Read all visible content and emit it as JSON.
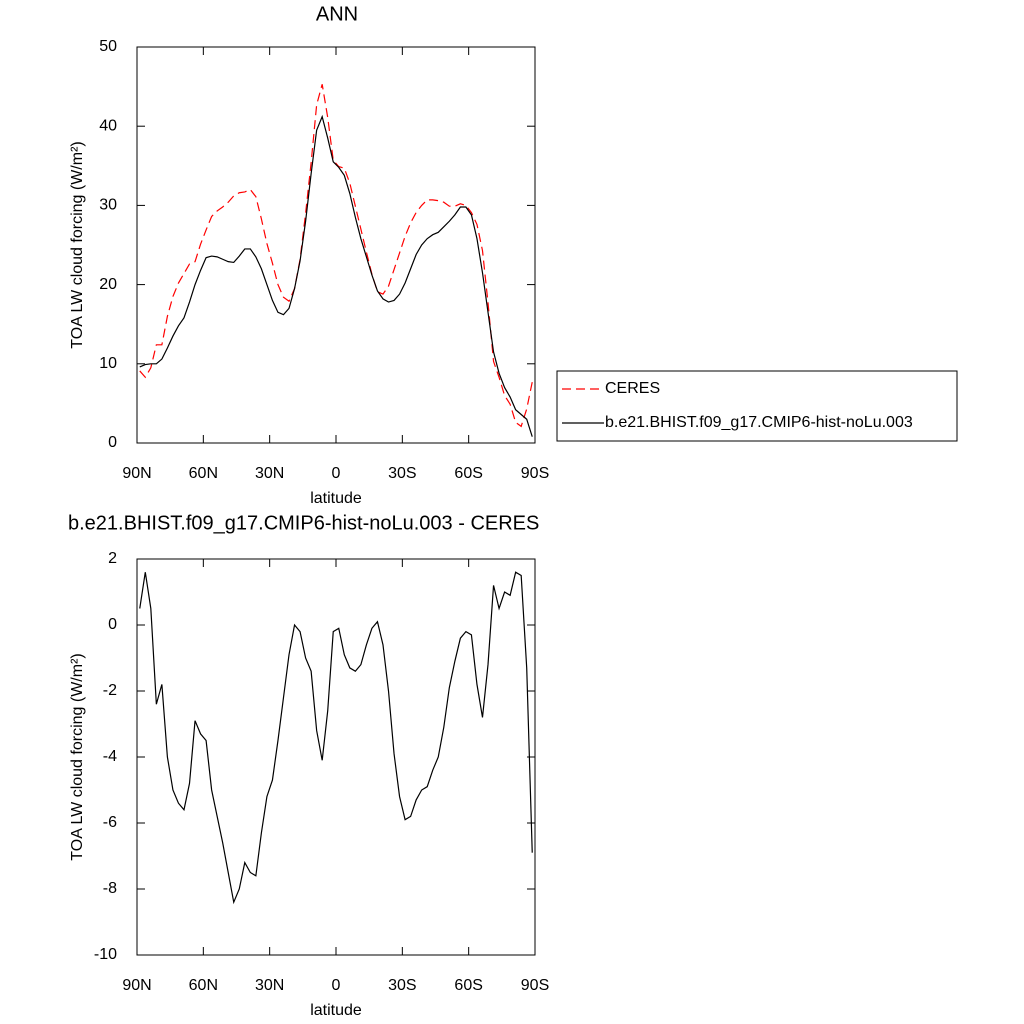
{
  "chart_data": [
    {
      "type": "line",
      "title": "ANN",
      "xlabel": "latitude",
      "ylabel": "TOA LW cloud forcing (W/m²)",
      "x": [
        88.75,
        86.25,
        83.75,
        81.25,
        78.75,
        76.25,
        73.75,
        71.25,
        68.75,
        66.25,
        63.75,
        61.25,
        58.75,
        56.25,
        53.75,
        51.25,
        48.75,
        46.25,
        43.75,
        41.25,
        38.75,
        36.25,
        33.75,
        31.25,
        28.75,
        26.25,
        23.75,
        21.25,
        18.75,
        16.25,
        13.75,
        11.25,
        8.75,
        6.25,
        3.75,
        1.25,
        -1.25,
        -3.75,
        -6.25,
        -8.75,
        -11.25,
        -13.75,
        -16.25,
        -18.75,
        -21.25,
        -23.75,
        -26.25,
        -28.75,
        -31.25,
        -33.75,
        -36.25,
        -38.75,
        -41.25,
        -43.75,
        -46.25,
        -48.75,
        -51.25,
        -53.75,
        -56.25,
        -58.75,
        -61.25,
        -63.75,
        -66.25,
        -68.75,
        -71.25,
        -73.75,
        -76.25,
        -78.75,
        -81.25,
        -83.75,
        -86.25,
        -88.75
      ],
      "xlim": [
        90,
        -90
      ],
      "xticks": [
        {
          "value": 90,
          "label": "90N"
        },
        {
          "value": 60,
          "label": "60N"
        },
        {
          "value": 30,
          "label": "30N"
        },
        0,
        {
          "value": -30,
          "label": "30S"
        },
        {
          "value": -60,
          "label": "60S"
        },
        {
          "value": -90,
          "label": "90S"
        }
      ],
      "ylim": [
        0,
        50
      ],
      "yticks": [
        0,
        10,
        20,
        30,
        40,
        50
      ],
      "legend": "right",
      "series": [
        {
          "name": "CERES",
          "color": "#ff0000",
          "line_style": "dashed",
          "values": [
            9.1,
            8.3,
            9.5,
            12.4,
            12.4,
            16.0,
            18.5,
            20.2,
            21.4,
            22.6,
            22.9,
            25.1,
            26.9,
            28.6,
            29.3,
            29.8,
            30.4,
            31.2,
            31.6,
            31.7,
            32.0,
            31.1,
            28.3,
            25.2,
            22.7,
            20.0,
            18.4,
            17.9,
            19.5,
            23.2,
            29.0,
            35.4,
            42.7,
            45.3,
            41.1,
            35.7,
            34.9,
            34.7,
            32.8,
            29.9,
            27.0,
            24.1,
            21.3,
            19.1,
            18.8,
            19.8,
            21.9,
            24.0,
            26.1,
            27.8,
            29.1,
            30.0,
            30.7,
            30.7,
            30.6,
            30.4,
            29.9,
            29.9,
            30.2,
            30.0,
            29.1,
            27.6,
            24.3,
            17.7,
            10.3,
            8.3,
            6.0,
            4.9,
            2.6,
            2.1,
            4.3,
            7.7
          ]
        },
        {
          "name": "b.e21.BHIST.f09_g17.CMIP6-hist-noLu.003",
          "color": "#000000",
          "line_style": "solid",
          "values": [
            9.6,
            9.9,
            10.0,
            10.0,
            10.6,
            12.0,
            13.5,
            14.8,
            15.8,
            17.8,
            20.0,
            21.8,
            23.4,
            23.6,
            23.5,
            23.2,
            22.9,
            22.8,
            23.6,
            24.5,
            24.5,
            23.5,
            22.0,
            20.0,
            18.0,
            16.5,
            16.2,
            17.0,
            19.5,
            23.0,
            28.0,
            34.0,
            39.5,
            41.2,
            38.5,
            35.5,
            34.8,
            33.8,
            31.5,
            28.5,
            25.8,
            23.5,
            21.2,
            19.2,
            18.2,
            17.8,
            18.0,
            18.8,
            20.2,
            22.0,
            23.8,
            25.0,
            25.8,
            26.3,
            26.6,
            27.3,
            28.0,
            28.8,
            29.8,
            29.8,
            28.8,
            25.8,
            21.5,
            16.5,
            11.5,
            8.8,
            7.0,
            5.8,
            4.2,
            3.6,
            3.0,
            0.8
          ]
        }
      ]
    },
    {
      "type": "line",
      "title": "b.e21.BHIST.f09_g17.CMIP6-hist-noLu.003 - CERES",
      "xlabel": "latitude",
      "ylabel": "TOA LW cloud forcing (W/m²)",
      "x": [
        88.75,
        86.25,
        83.75,
        81.25,
        78.75,
        76.25,
        73.75,
        71.25,
        68.75,
        66.25,
        63.75,
        61.25,
        58.75,
        56.25,
        53.75,
        51.25,
        48.75,
        46.25,
        43.75,
        41.25,
        38.75,
        36.25,
        33.75,
        31.25,
        28.75,
        26.25,
        23.75,
        21.25,
        18.75,
        16.25,
        13.75,
        11.25,
        8.75,
        6.25,
        3.75,
        1.25,
        -1.25,
        -3.75,
        -6.25,
        -8.75,
        -11.25,
        -13.75,
        -16.25,
        -18.75,
        -21.25,
        -23.75,
        -26.25,
        -28.75,
        -31.25,
        -33.75,
        -36.25,
        -38.75,
        -41.25,
        -43.75,
        -46.25,
        -48.75,
        -51.25,
        -53.75,
        -56.25,
        -58.75,
        -61.25,
        -63.75,
        -66.25,
        -68.75,
        -71.25,
        -73.75,
        -76.25,
        -78.75,
        -81.25,
        -83.75,
        -86.25,
        -88.75
      ],
      "xlim": [
        90,
        -90
      ],
      "xticks": [
        {
          "value": 90,
          "label": "90N"
        },
        {
          "value": 60,
          "label": "60N"
        },
        {
          "value": 30,
          "label": "30N"
        },
        0,
        {
          "value": -30,
          "label": "30S"
        },
        {
          "value": -60,
          "label": "60S"
        },
        {
          "value": -90,
          "label": "90S"
        }
      ],
      "ylim": [
        -10,
        2
      ],
      "yticks": [
        -10,
        -8,
        -6,
        -4,
        -2,
        0,
        2
      ],
      "series": [
        {
          "color": "#000000",
          "line_style": "solid",
          "values": [
            0.5,
            1.6,
            0.5,
            -2.4,
            -1.8,
            -4.0,
            -5.0,
            -5.4,
            -5.6,
            -4.8,
            -2.9,
            -3.3,
            -3.5,
            -5.0,
            -5.8,
            -6.6,
            -7.5,
            -8.4,
            -8.0,
            -7.2,
            -7.5,
            -7.6,
            -6.3,
            -5.2,
            -4.7,
            -3.5,
            -2.2,
            -0.9,
            0.0,
            -0.2,
            -1.0,
            -1.4,
            -3.2,
            -4.1,
            -2.6,
            -0.2,
            -0.1,
            -0.9,
            -1.3,
            -1.4,
            -1.2,
            -0.6,
            -0.1,
            0.1,
            -0.6,
            -2.0,
            -3.9,
            -5.2,
            -5.9,
            -5.8,
            -5.3,
            -5.0,
            -4.9,
            -4.4,
            -4.0,
            -3.1,
            -1.9,
            -1.1,
            -0.4,
            -0.2,
            -0.3,
            -1.8,
            -2.8,
            -1.2,
            1.2,
            0.5,
            1.0,
            0.9,
            1.6,
            1.5,
            -1.3,
            -6.9
          ]
        }
      ]
    }
  ]
}
